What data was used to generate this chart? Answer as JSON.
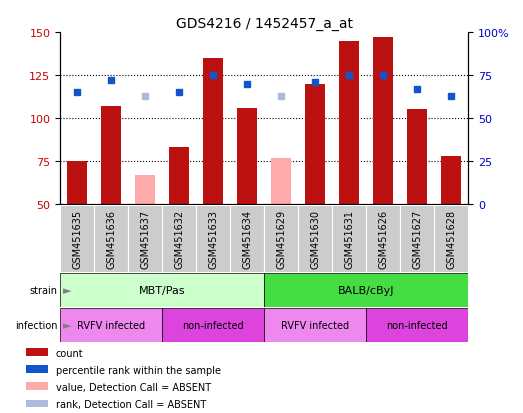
{
  "title": "GDS4216 / 1452457_a_at",
  "samples": [
    "GSM451635",
    "GSM451636",
    "GSM451637",
    "GSM451632",
    "GSM451633",
    "GSM451634",
    "GSM451629",
    "GSM451630",
    "GSM451631",
    "GSM451626",
    "GSM451627",
    "GSM451628"
  ],
  "counts": [
    75,
    107,
    null,
    83,
    135,
    106,
    null,
    120,
    145,
    147,
    105,
    78
  ],
  "absent_counts": [
    null,
    null,
    67,
    null,
    null,
    null,
    77,
    null,
    null,
    null,
    null,
    null
  ],
  "ranks": [
    115,
    122,
    null,
    115,
    125,
    120,
    null,
    121,
    125,
    125,
    117,
    113
  ],
  "absent_ranks": [
    null,
    null,
    113,
    null,
    null,
    null,
    113,
    null,
    null,
    null,
    null,
    null
  ],
  "ylim_left": [
    50,
    150
  ],
  "ylim_right": [
    0,
    100
  ],
  "yticks_left": [
    50,
    75,
    100,
    125,
    150
  ],
  "yticks_right": [
    0,
    25,
    50,
    75,
    100
  ],
  "bar_color": "#bb1111",
  "bar_absent_color": "#ffaaaa",
  "rank_color": "#1155cc",
  "rank_absent_color": "#aabbdd",
  "strain_groups": [
    {
      "label": "MBT/Pas",
      "start": 0,
      "end": 6,
      "color": "#ccffcc"
    },
    {
      "label": "BALB/cByJ",
      "start": 6,
      "end": 12,
      "color": "#44dd44"
    }
  ],
  "infection_groups": [
    {
      "label": "RVFV infected",
      "start": 0,
      "end": 3,
      "color": "#ee88ee"
    },
    {
      "label": "non-infected",
      "start": 3,
      "end": 6,
      "color": "#dd44dd"
    },
    {
      "label": "RVFV infected",
      "start": 6,
      "end": 9,
      "color": "#ee88ee"
    },
    {
      "label": "non-infected",
      "start": 9,
      "end": 12,
      "color": "#dd44dd"
    }
  ],
  "legend_items": [
    {
      "label": "count",
      "color": "#bb1111"
    },
    {
      "label": "percentile rank within the sample",
      "color": "#1155cc"
    },
    {
      "label": "value, Detection Call = ABSENT",
      "color": "#ffaaaa"
    },
    {
      "label": "rank, Detection Call = ABSENT",
      "color": "#aabbdd"
    }
  ],
  "background_color": "#ffffff",
  "tick_label_color_left": "#cc0000",
  "tick_label_color_right": "#0000cc",
  "xtick_bg_color": "#cccccc",
  "title_fontsize": 10,
  "bar_width": 0.6
}
